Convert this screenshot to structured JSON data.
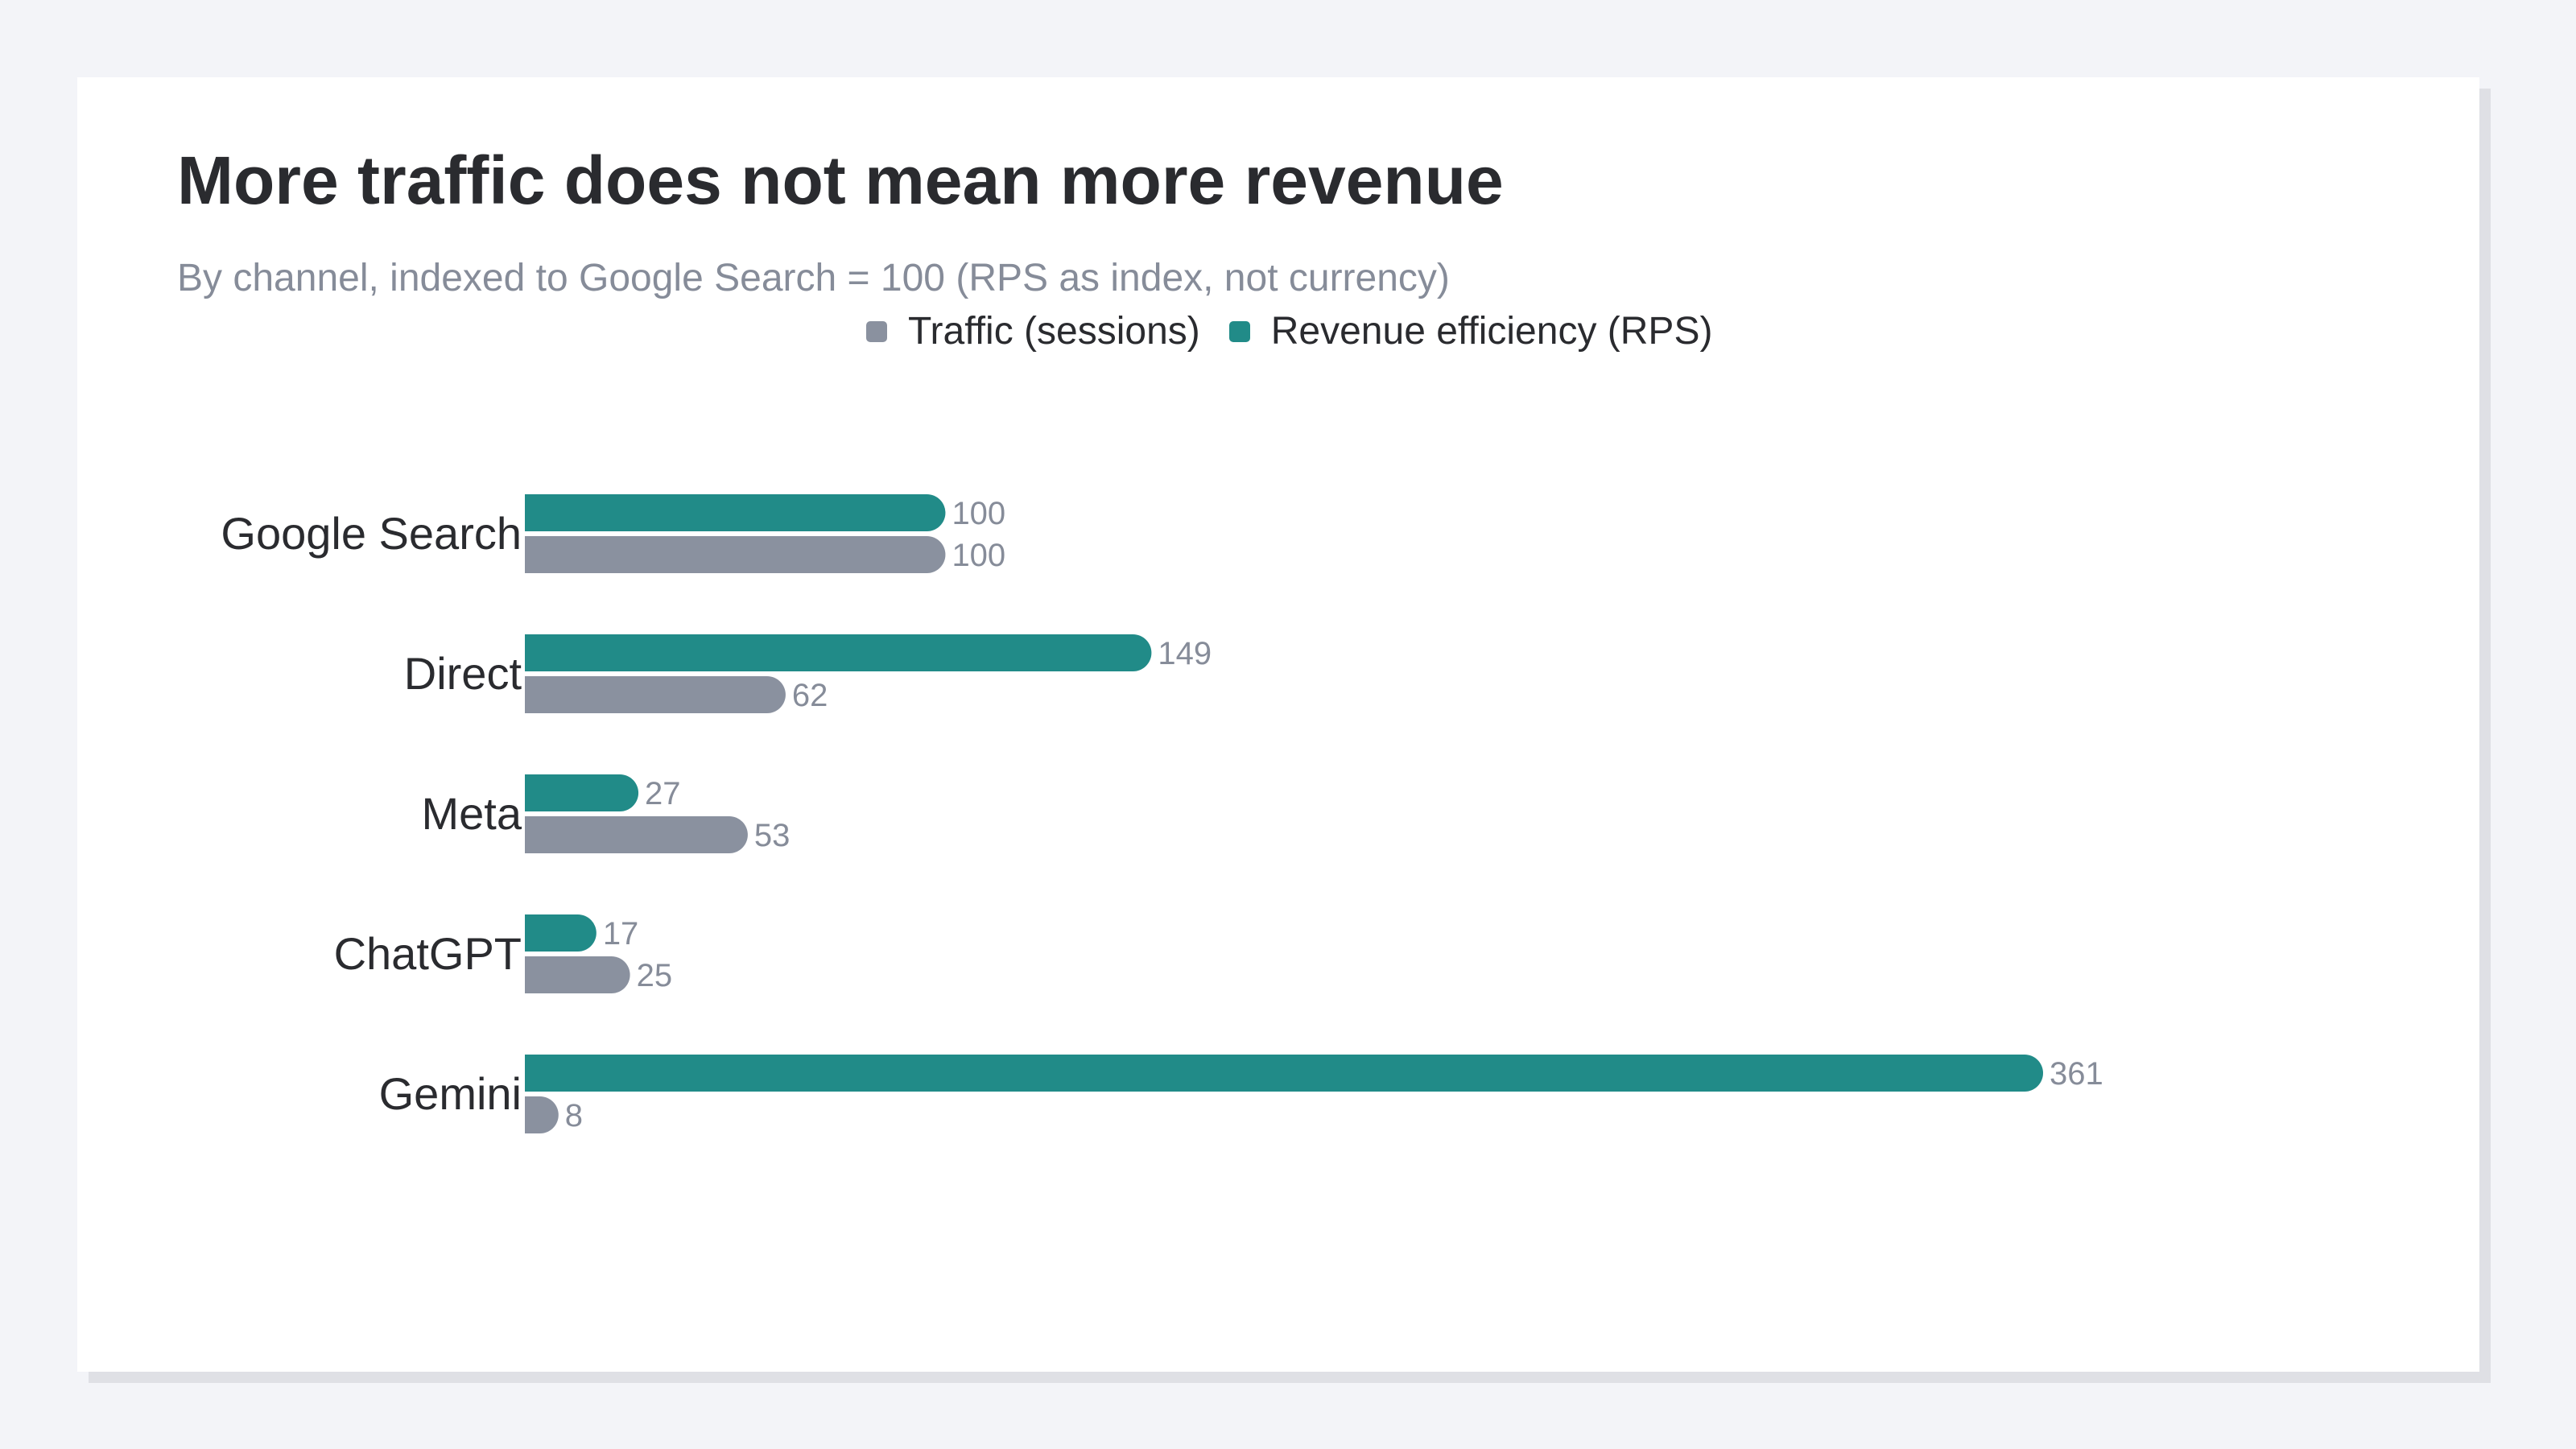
{
  "chart_data": {
    "type": "bar",
    "orientation": "horizontal",
    "title": "More traffic does not mean more revenue",
    "subtitle": "By channel, indexed to Google Search = 100 (RPS as index, not currency)",
    "categories": [
      "Google Search",
      "Direct",
      "Meta",
      "ChatGPT",
      "Gemini"
    ],
    "series": [
      {
        "name": "Revenue efficiency (RPS)",
        "color": "#218b88",
        "values": [
          100,
          149,
          27,
          17,
          361
        ]
      },
      {
        "name": "Traffic (sessions)",
        "color": "#8a919f",
        "values": [
          100,
          62,
          53,
          25,
          8
        ]
      }
    ],
    "legend": {
      "position": "top",
      "items": [
        {
          "name": "Traffic (sessions)",
          "color": "#8a919f"
        },
        {
          "name": "Revenue efficiency (RPS)",
          "color": "#218b88"
        }
      ]
    },
    "xlim": [
      0,
      361
    ],
    "grid": false,
    "data_labels": true
  }
}
